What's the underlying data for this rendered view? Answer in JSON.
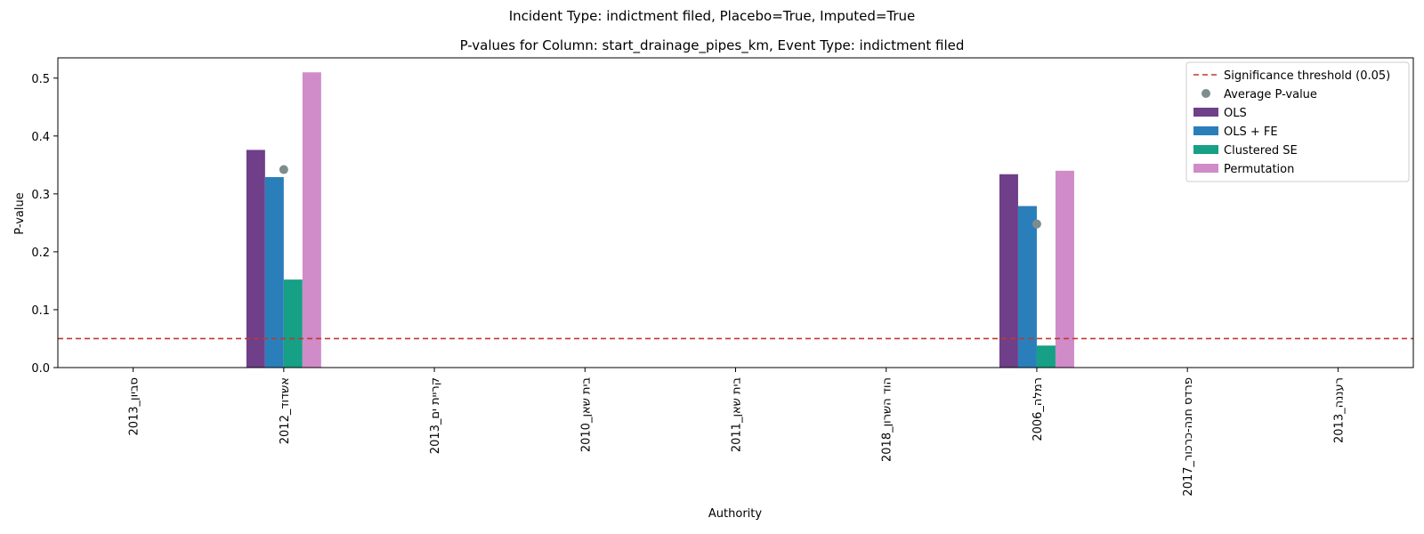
{
  "chart_data": {
    "type": "bar",
    "suptitle": "Incident Type: indictment filed, Placebo=True, Imputed=True",
    "title": "P-values for Column: start_drainage_pipes_km, Event Type: indictment filed",
    "xlabel": "Authority",
    "ylabel": "P-value",
    "ylim": [
      0,
      0.535
    ],
    "yticks": [
      "0.0",
      "0.1",
      "0.2",
      "0.3",
      "0.4",
      "0.5"
    ],
    "grid": false,
    "legend_position": "top-right",
    "categories": [
      "סביון_2013",
      "אשדוד_2012",
      "קריית ים_2013",
      "בית שאן_2010",
      "בית שאן_2011",
      "הוד השרון_2018",
      "רמלה_2006",
      "פרדס חנה-כרכור_2017",
      "רעננה_2013"
    ],
    "series": [
      {
        "name": "OLS",
        "color": "#6f3f8a",
        "values": [
          null,
          0.376,
          null,
          null,
          null,
          null,
          0.334,
          null,
          null
        ]
      },
      {
        "name": "OLS + FE",
        "color": "#2a7fba",
        "values": [
          null,
          0.329,
          null,
          null,
          null,
          null,
          0.279,
          null,
          null
        ]
      },
      {
        "name": "Clustered SE",
        "color": "#16a085",
        "values": [
          null,
          0.152,
          null,
          null,
          null,
          null,
          0.038,
          null,
          null
        ]
      },
      {
        "name": "Permutation",
        "color": "#d08bc9",
        "values": [
          null,
          0.51,
          null,
          null,
          null,
          null,
          0.34,
          null,
          null
        ]
      }
    ],
    "average_pvalue": {
      "name": "Average P-value",
      "color": "#7f8c8d",
      "values": [
        null,
        0.342,
        null,
        null,
        null,
        null,
        0.248,
        null,
        null
      ]
    },
    "threshold": {
      "name": "Significance threshold (0.05)",
      "value": 0.05,
      "color": "#c0392b"
    }
  }
}
